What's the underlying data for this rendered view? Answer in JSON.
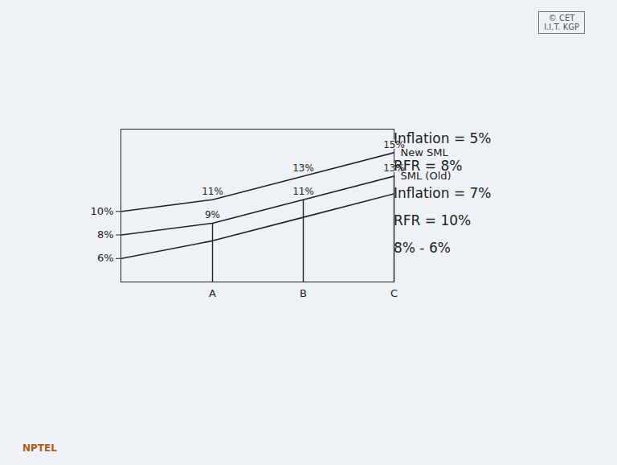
{
  "chart_data": {
    "type": "line",
    "categories": [
      null,
      "A",
      "B",
      "C"
    ],
    "series": [
      {
        "name": "New SML",
        "color": "#222222",
        "values": [
          10,
          11,
          13,
          15
        ],
        "value_labels": [
          null,
          "11%",
          "13%",
          "15%"
        ]
      },
      {
        "name": "SML (Old)",
        "color": "#222222",
        "values": [
          8,
          9,
          11,
          13
        ],
        "value_labels": [
          null,
          "9%",
          "11%",
          "13%"
        ]
      },
      {
        "name": null,
        "color": "#222222",
        "values": [
          6,
          7.5,
          9.5,
          11.5
        ]
      }
    ],
    "ylim": [
      4,
      17
    ],
    "yticks": [
      {
        "value": 6,
        "label": "6%"
      },
      {
        "value": 8,
        "label": "8%"
      },
      {
        "value": 10,
        "label": "10%"
      }
    ],
    "data_labels": true,
    "notes": [
      "Inflation = 5%",
      "RFR = 8%",
      "Inflation = 7%",
      "RFR = 10%",
      "8% - 6%"
    ],
    "credit": "© CET\nI.I.T. KGP",
    "logo": "NPTEL"
  }
}
